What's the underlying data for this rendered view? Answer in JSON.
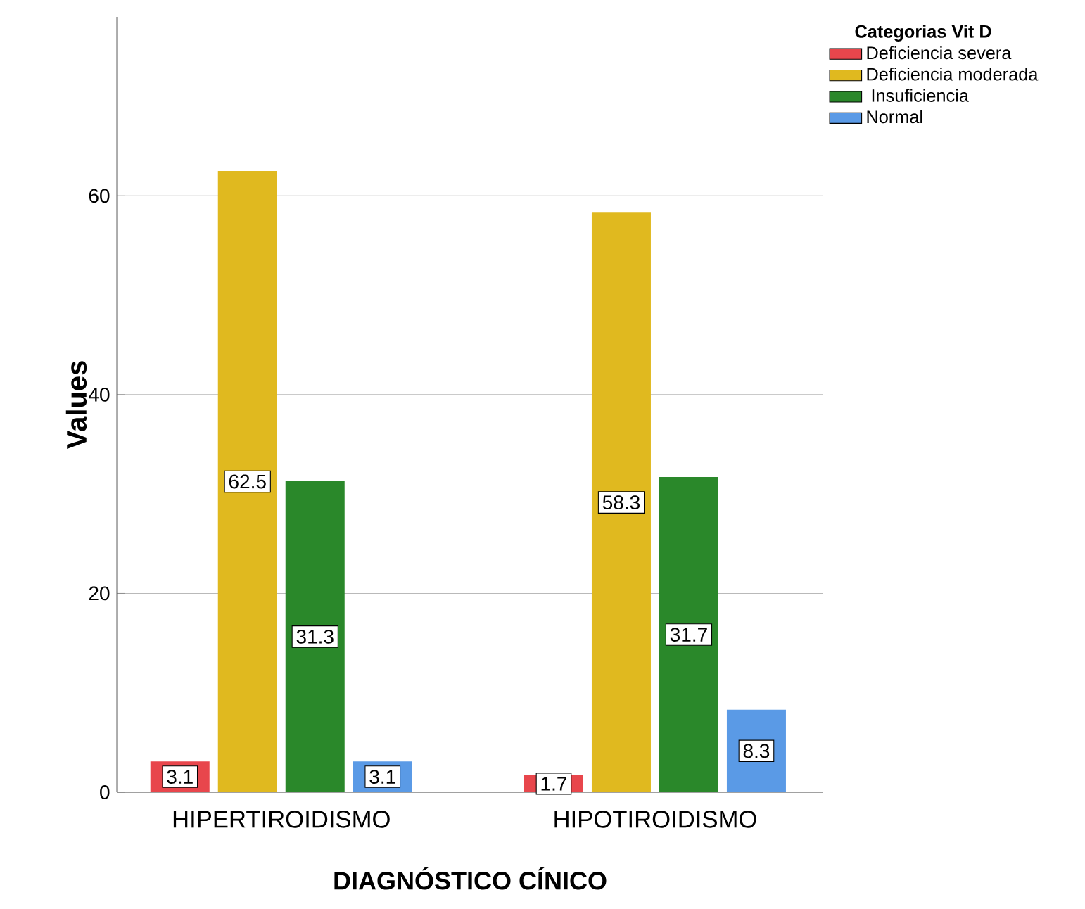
{
  "chart_data": {
    "type": "bar",
    "xlabel": "DIAGNÓSTICO CÍNICO",
    "ylabel": "Values",
    "legend_title": "Categorias Vit D",
    "categories": [
      "HIPERTIROIDISMO",
      "HIPOTIROIDISMO"
    ],
    "series": [
      {
        "name": "Deficiencia severa",
        "color": "#e8464c",
        "values": [
          3.1,
          1.7
        ]
      },
      {
        "name": "Deficiencia moderada",
        "color": "#e0b91f",
        "values": [
          62.5,
          58.3
        ]
      },
      {
        "name": " Insuficiencia",
        "color": "#2a882a",
        "values": [
          31.3,
          31.7
        ]
      },
      {
        "name": "Normal",
        "color": "#5a9ae6",
        "values": [
          3.1,
          8.3
        ]
      }
    ],
    "ylim": [
      0,
      78
    ],
    "yticks": [
      0,
      20,
      40,
      60
    ],
    "grid": "y",
    "legend": "top right",
    "data_labels": true
  }
}
